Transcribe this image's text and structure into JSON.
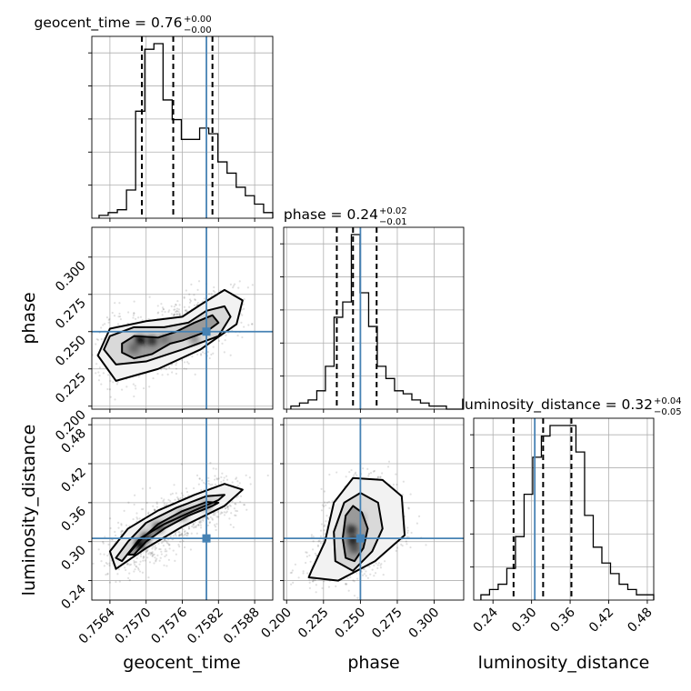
{
  "figure": {
    "type": "corner plot"
  },
  "truth_color": "#4682b4",
  "chart_data": {
    "type": "corner",
    "parameters": [
      {
        "name": "geocent_time",
        "range": [
          0.7561,
          0.7591
        ],
        "ticks": [
          0.7564,
          0.757,
          0.7576,
          0.7582,
          0.7588
        ],
        "tick_labels": [
          "0.7564",
          "0.7570",
          "0.7576",
          "0.7582",
          "0.7588"
        ],
        "truth": 0.758,
        "quantile_lines": [
          0.75693,
          0.75745,
          0.7581
        ],
        "title": "geocent_time = 0.76",
        "title_plus": "+0.00",
        "title_minus": "−0.00",
        "axis_label": "geocent_time",
        "hist_values": [
          1,
          2,
          3,
          10,
          38,
          60,
          62,
          42,
          35,
          28,
          28,
          32,
          30,
          20,
          16,
          11,
          8,
          5,
          2
        ]
      },
      {
        "name": "phase",
        "range": [
          0.198,
          0.32
        ],
        "ticks": [
          0.2,
          0.225,
          0.25,
          0.275,
          0.3
        ],
        "tick_labels": [
          "0.200",
          "0.225",
          "0.250",
          "0.275",
          "0.300"
        ],
        "truth": 0.25,
        "quantile_lines": [
          0.234,
          0.245,
          0.261
        ],
        "title": "phase = 0.24",
        "title_plus": "+0.02",
        "title_minus": "−0.01",
        "axis_label": "phase",
        "hist_values": [
          1,
          2,
          3,
          6,
          14,
          30,
          35,
          57,
          38,
          27,
          14,
          10,
          6,
          5,
          3,
          2,
          1,
          1,
          0,
          0
        ]
      },
      {
        "name": "luminosity_distance",
        "range": [
          0.21,
          0.49
        ],
        "ticks": [
          0.24,
          0.3,
          0.36,
          0.42,
          0.48
        ],
        "tick_labels": [
          "0.24",
          "0.30",
          "0.36",
          "0.42",
          "0.48"
        ],
        "truth": 0.305,
        "quantile_lines": [
          0.272,
          0.318,
          0.362
        ],
        "title": "luminosity_distance = 0.32",
        "title_plus": "+0.04",
        "title_minus": "−0.05",
        "axis_label": "luminosity_distance",
        "hist_values": [
          1,
          2,
          3,
          6,
          12,
          20,
          27,
          31,
          33,
          33,
          33,
          28,
          16,
          10,
          7,
          5,
          3,
          2,
          1,
          1
        ]
      }
    ],
    "pairs": [
      {
        "x": "geocent_time",
        "y": "phase",
        "contours": [
          [
            [
              0.7566,
              0.236
            ],
            [
              0.7568,
              0.232
            ],
            [
              0.7571,
              0.235
            ],
            [
              0.7574,
              0.242
            ],
            [
              0.7576,
              0.244
            ],
            [
              0.758,
              0.25
            ],
            [
              0.7582,
              0.256
            ],
            [
              0.7581,
              0.261
            ],
            [
              0.7578,
              0.256
            ],
            [
              0.7575,
              0.25
            ],
            [
              0.7572,
              0.246
            ],
            [
              0.7568,
              0.247
            ],
            [
              0.7566,
              0.242
            ]
          ],
          [
            [
              0.7563,
              0.238
            ],
            [
              0.7565,
              0.228
            ],
            [
              0.757,
              0.23
            ],
            [
              0.7576,
              0.238
            ],
            [
              0.7582,
              0.247
            ],
            [
              0.7584,
              0.26
            ],
            [
              0.7583,
              0.267
            ],
            [
              0.758,
              0.264
            ],
            [
              0.7577,
              0.256
            ],
            [
              0.7573,
              0.253
            ],
            [
              0.7568,
              0.253
            ],
            [
              0.7564,
              0.247
            ]
          ],
          [
            [
              0.7562,
              0.234
            ],
            [
              0.7565,
              0.217
            ],
            [
              0.7572,
              0.225
            ],
            [
              0.7579,
              0.238
            ],
            [
              0.7585,
              0.255
            ],
            [
              0.7586,
              0.271
            ],
            [
              0.7583,
              0.278
            ],
            [
              0.7579,
              0.268
            ],
            [
              0.7576,
              0.26
            ],
            [
              0.757,
              0.257
            ],
            [
              0.7564,
              0.252
            ]
          ]
        ],
        "density_peaks": [
          [
            0.7569,
            0.244,
            1.0
          ],
          [
            0.7571,
            0.244,
            0.85
          ],
          [
            0.7573,
            0.245,
            0.55
          ],
          [
            0.7578,
            0.245,
            0.45
          ],
          [
            0.7568,
            0.239,
            0.6
          ]
        ]
      },
      {
        "x": "geocent_time",
        "y": "luminosity_distance",
        "contours": [
          [
            [
              0.7568,
              0.28
            ],
            [
              0.757,
              0.3
            ],
            [
              0.7573,
              0.32
            ],
            [
              0.7577,
              0.34
            ],
            [
              0.7581,
              0.355
            ],
            [
              0.7582,
              0.36
            ],
            [
              0.758,
              0.361
            ],
            [
              0.7576,
              0.347
            ],
            [
              0.7572,
              0.327
            ],
            [
              0.7569,
              0.302
            ],
            [
              0.7567,
              0.28
            ]
          ],
          [
            [
              0.7566,
              0.27
            ],
            [
              0.7569,
              0.305
            ],
            [
              0.7573,
              0.327
            ],
            [
              0.7578,
              0.348
            ],
            [
              0.7582,
              0.364
            ],
            [
              0.7583,
              0.372
            ],
            [
              0.758,
              0.37
            ],
            [
              0.7575,
              0.352
            ],
            [
              0.757,
              0.329
            ],
            [
              0.7567,
              0.3
            ],
            [
              0.7565,
              0.275
            ]
          ],
          [
            [
              0.7565,
              0.258
            ],
            [
              0.757,
              0.29
            ],
            [
              0.7576,
              0.323
            ],
            [
              0.7583,
              0.355
            ],
            [
              0.7586,
              0.38
            ],
            [
              0.7583,
              0.389
            ],
            [
              0.7578,
              0.372
            ],
            [
              0.7572,
              0.348
            ],
            [
              0.7567,
              0.32
            ],
            [
              0.7564,
              0.285
            ]
          ]
        ],
        "density_peaks": [
          [
            0.7569,
            0.296,
            1.0
          ],
          [
            0.757,
            0.306,
            0.8
          ],
          [
            0.7572,
            0.322,
            0.7
          ],
          [
            0.7576,
            0.34,
            0.5
          ],
          [
            0.758,
            0.355,
            0.45
          ]
        ]
      },
      {
        "x": "phase",
        "y": "luminosity_distance",
        "contours": [
          [
            [
              0.24,
              0.275
            ],
            [
              0.246,
              0.27
            ],
            [
              0.252,
              0.29
            ],
            [
              0.255,
              0.32
            ],
            [
              0.251,
              0.345
            ],
            [
              0.245,
              0.355
            ],
            [
              0.24,
              0.34
            ],
            [
              0.238,
              0.305
            ]
          ],
          [
            [
              0.233,
              0.27
            ],
            [
              0.245,
              0.255
            ],
            [
              0.258,
              0.285
            ],
            [
              0.265,
              0.32
            ],
            [
              0.262,
              0.36
            ],
            [
              0.25,
              0.375
            ],
            [
              0.239,
              0.36
            ],
            [
              0.232,
              0.315
            ]
          ],
          [
            [
              0.215,
              0.245
            ],
            [
              0.235,
              0.24
            ],
            [
              0.26,
              0.27
            ],
            [
              0.28,
              0.31
            ],
            [
              0.278,
              0.37
            ],
            [
              0.265,
              0.395
            ],
            [
              0.245,
              0.398
            ],
            [
              0.232,
              0.36
            ],
            [
              0.226,
              0.3
            ],
            [
              0.217,
              0.256
            ]
          ]
        ],
        "density_peaks": [
          [
            0.245,
            0.3,
            1.0
          ],
          [
            0.244,
            0.318,
            0.85
          ],
          [
            0.246,
            0.29,
            0.7
          ],
          [
            0.25,
            0.335,
            0.4
          ]
        ]
      }
    ]
  }
}
